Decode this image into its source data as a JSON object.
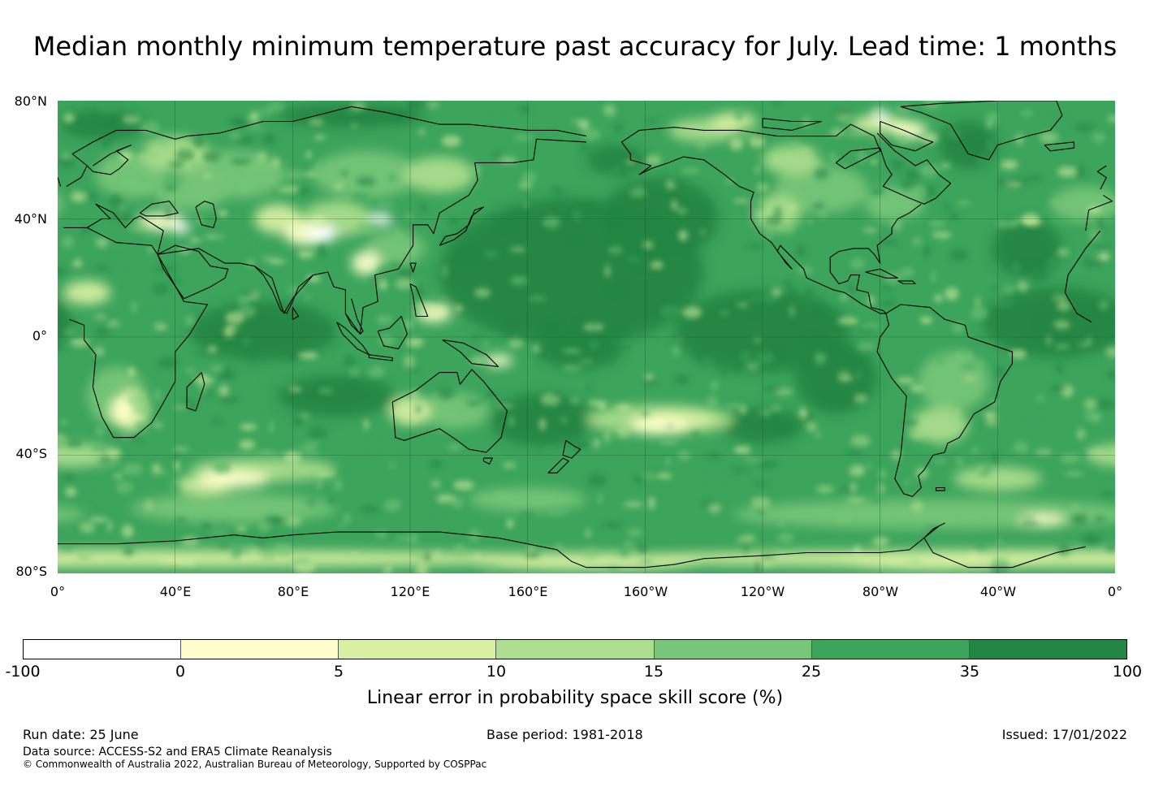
{
  "title": "Median monthly minimum temperature past accuracy for July. Lead time: 1 months",
  "map": {
    "lat_labels": [
      "80°N",
      "40°N",
      "0°",
      "40°S",
      "80°S"
    ],
    "lon_labels": [
      "0°",
      "40°E",
      "80°E",
      "120°E",
      "160°E",
      "160°W",
      "120°W",
      "80°W",
      "40°W",
      "0°"
    ]
  },
  "colorbar": {
    "colors": [
      "#ffffff",
      "#ffffcc",
      "#d9f0a3",
      "#addd8e",
      "#78c679",
      "#3da45c",
      "#238443"
    ],
    "ticks": [
      "-100",
      "0",
      "5",
      "10",
      "15",
      "25",
      "35",
      "100"
    ],
    "label": "Linear error in probability space skill score (%)"
  },
  "footer": {
    "run_date": "Run date: 25 June",
    "base_period": "Base period: 1981-2018",
    "issued": "Issued: 17/01/2022",
    "data_source": "Data source: ACCESS-S2 and ERA5 Climate Reanalysis",
    "copyright": "© Commonwealth of Australia 2022, Australian Bureau of Meteorology, Supported by COSPPac"
  }
}
